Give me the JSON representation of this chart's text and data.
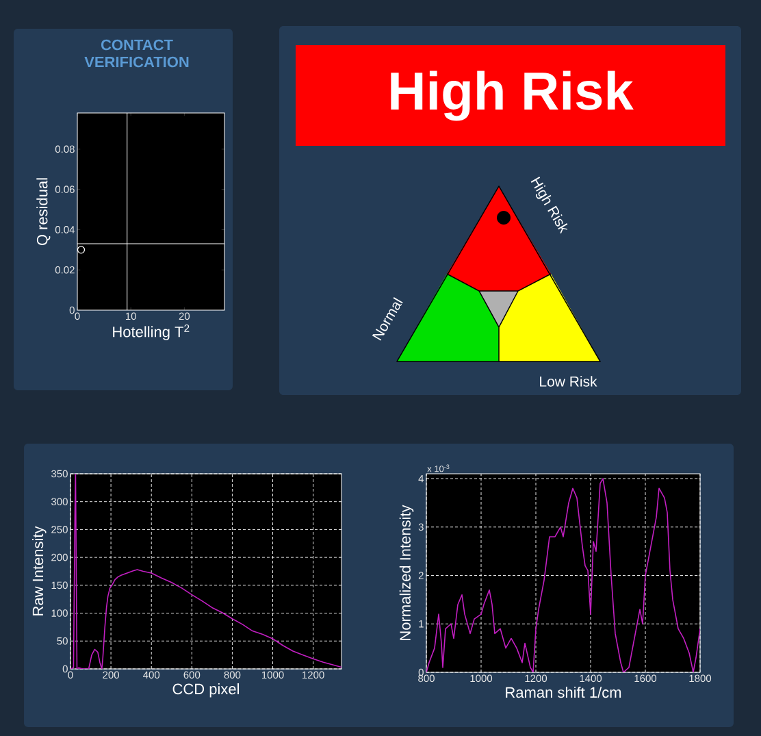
{
  "chart_data": [
    {
      "type": "scatter",
      "title": "CONTACT VERIFICATION",
      "xlabel": "Hotelling T$^{2}$",
      "ylabel": "Q residual",
      "xlim": [
        0,
        27.5
      ],
      "ylim": [
        0,
        0.098
      ],
      "xticks": [
        0,
        10,
        20
      ],
      "yticks": [
        0,
        0.02,
        0.04,
        0.06,
        0.08
      ],
      "marker": "circle",
      "series": [
        {
          "color": "#ffffff",
          "x": [
            0.7
          ],
          "values": [
            0.03
          ]
        }
      ],
      "ref_lines": [
        {
          "axis": "x",
          "value": 9.3,
          "color": "#ffffff"
        },
        {
          "axis": "y",
          "value": 0.033,
          "color": "#ffffff"
        }
      ]
    },
    {
      "type": "other",
      "title": "High Risk",
      "annotations": [
        "High Risk",
        "Normal",
        "Low Risk"
      ]
    },
    {
      "type": "line",
      "xlabel": "CCD pixel",
      "ylabel": "Raw Intensity",
      "xlim": [
        0,
        1340
      ],
      "ylim": [
        0,
        350
      ],
      "xticks": [
        0,
        200,
        400,
        600,
        800,
        1000,
        1200
      ],
      "yticks": [
        0,
        50,
        100,
        150,
        200,
        250,
        300,
        350
      ],
      "grid": true,
      "series": [
        {
          "color": "#c21fc2",
          "x": [
            0,
            15,
            22,
            25,
            28,
            32,
            40,
            60,
            90,
            105,
            120,
            135,
            145,
            155,
            160,
            170,
            178,
            185,
            195,
            205,
            220,
            235,
            250,
            280,
            310,
            330,
            360,
            400,
            450,
            500,
            550,
            600,
            650,
            700,
            750,
            800,
            850,
            900,
            950,
            1000,
            1050,
            1100,
            1150,
            1200,
            1250,
            1300,
            1340
          ],
          "values": [
            0,
            2,
            280,
            350,
            200,
            0,
            2,
            0,
            0,
            25,
            35,
            30,
            12,
            0,
            20,
            75,
            110,
            130,
            145,
            150,
            160,
            165,
            168,
            172,
            176,
            178,
            175,
            172,
            163,
            155,
            145,
            133,
            122,
            110,
            101,
            90,
            80,
            68,
            62,
            54,
            42,
            32,
            25,
            18,
            12,
            7,
            3
          ]
        }
      ]
    },
    {
      "type": "line",
      "xlabel": "Raman shift 1/cm",
      "ylabel": "Normalized Intensity",
      "annotations": [
        "x 10$^{-3}$"
      ],
      "xlim": [
        800,
        1800
      ],
      "ylim": [
        0,
        4.1
      ],
      "xticks": [
        800,
        1000,
        1200,
        1400,
        1600,
        1800
      ],
      "yticks": [
        0,
        1,
        2,
        3,
        4
      ],
      "grid": true,
      "series": [
        {
          "color": "#c21fc2",
          "x": [
            800,
            810,
            830,
            845,
            855,
            860,
            870,
            890,
            900,
            915,
            930,
            940,
            960,
            975,
            1000,
            1010,
            1030,
            1040,
            1050,
            1070,
            1090,
            1110,
            1130,
            1150,
            1160,
            1180,
            1190,
            1200,
            1210,
            1230,
            1250,
            1270,
            1290,
            1300,
            1320,
            1335,
            1350,
            1370,
            1380,
            1390,
            1400,
            1410,
            1420,
            1435,
            1445,
            1460,
            1475,
            1490,
            1510,
            1520,
            1540,
            1560,
            1580,
            1590,
            1600,
            1620,
            1640,
            1650,
            1670,
            1680,
            1690,
            1700,
            1720,
            1740,
            1760,
            1775,
            1785,
            1800
          ],
          "values": [
            0,
            0.2,
            0.5,
            1.2,
            0.6,
            0.1,
            0.9,
            1.0,
            0.7,
            1.4,
            1.6,
            1.2,
            0.8,
            1.1,
            1.2,
            1.4,
            1.7,
            1.4,
            0.8,
            0.9,
            0.5,
            0.7,
            0.5,
            0.2,
            0.6,
            0.1,
            0.0,
            0.9,
            1.3,
            1.9,
            2.8,
            2.8,
            3.0,
            2.8,
            3.5,
            3.8,
            3.6,
            2.6,
            2.2,
            2.1,
            1.2,
            2.7,
            2.5,
            3.9,
            4.0,
            3.5,
            2.0,
            0.8,
            0.2,
            0.0,
            0.1,
            0.7,
            1.3,
            1.0,
            2.0,
            2.6,
            3.2,
            3.8,
            3.6,
            3.3,
            2.1,
            1.5,
            0.9,
            0.7,
            0.4,
            0.0,
            0.3,
            0.9
          ]
        }
      ]
    }
  ]
}
